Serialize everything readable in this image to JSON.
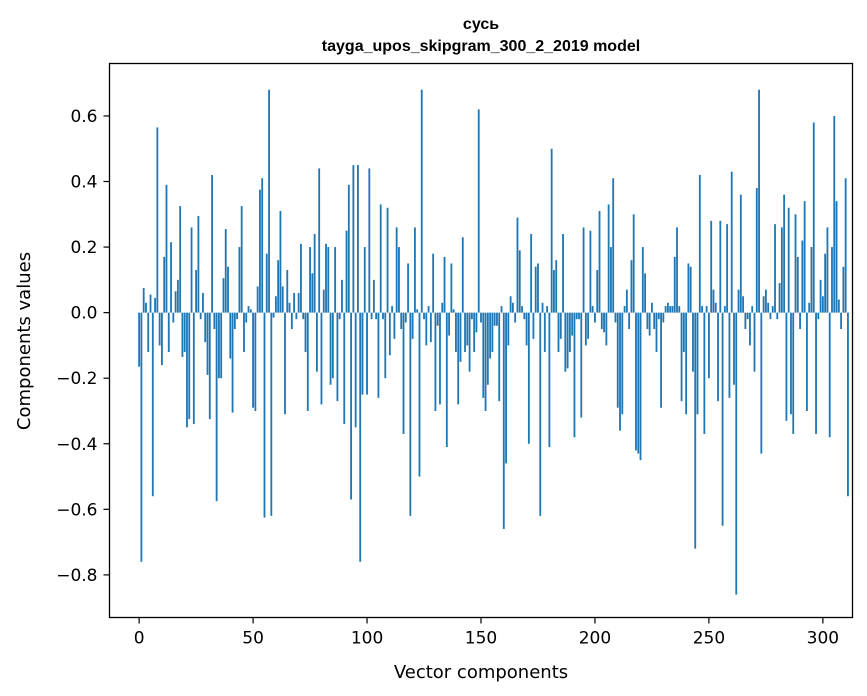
{
  "chart_data": {
    "type": "bar",
    "title_line1": "сусь",
    "title_line2": "tayga_upos_skipgram_300_2_2019 model",
    "xlabel": "Vector components",
    "ylabel": "Components values",
    "xlim": [
      -13,
      313
    ],
    "ylim": [
      -0.93,
      0.76
    ],
    "xticks": [
      0,
      50,
      100,
      150,
      200,
      250,
      300
    ],
    "xtick_labels": [
      "0",
      "50",
      "100",
      "150",
      "200",
      "250",
      "300"
    ],
    "yticks": [
      -0.8,
      -0.6,
      -0.4,
      -0.2,
      0.0,
      0.2,
      0.4,
      0.6
    ],
    "ytick_labels": [
      "−0.8",
      "−0.6",
      "−0.4",
      "−0.2",
      "0.0",
      "0.2",
      "0.4",
      "0.6"
    ],
    "bar_color": "#1f77b4",
    "values": [
      -0.165,
      -0.76,
      0.075,
      0.03,
      -0.12,
      0.055,
      -0.56,
      0.045,
      0.565,
      -0.1,
      -0.16,
      0.17,
      0.39,
      -0.12,
      0.215,
      -0.03,
      0.065,
      0.1,
      0.325,
      -0.135,
      -0.12,
      -0.35,
      -0.325,
      0.26,
      -0.34,
      0.13,
      0.295,
      -0.02,
      0.06,
      -0.09,
      -0.19,
      -0.325,
      0.42,
      -0.05,
      -0.575,
      -0.2,
      -0.2,
      0.105,
      0.255,
      0.14,
      -0.14,
      -0.305,
      -0.05,
      -0.02,
      0.2,
      0.325,
      -0.12,
      -0.03,
      0.02,
      0.01,
      -0.29,
      -0.3,
      0.08,
      0.375,
      0.41,
      -0.625,
      0.18,
      0.68,
      -0.62,
      -0.015,
      0.05,
      0.16,
      0.31,
      0.08,
      -0.31,
      0.13,
      0.03,
      -0.05,
      0.06,
      -0.02,
      0.06,
      0.21,
      -0.02,
      -0.12,
      -0.3,
      0.2,
      0.12,
      0.24,
      -0.18,
      0.44,
      -0.28,
      0.07,
      0.21,
      0.2,
      -0.22,
      -0.2,
      0.2,
      -0.27,
      -0.02,
      0.1,
      -0.34,
      0.25,
      0.39,
      -0.57,
      0.45,
      -0.35,
      0.45,
      -0.76,
      -0.25,
      0.2,
      -0.25,
      0.44,
      -0.02,
      0.1,
      -0.02,
      -0.26,
      0.33,
      -0.02,
      -0.2,
      0.32,
      -0.13,
      0.02,
      -0.08,
      0.26,
      0.2,
      -0.05,
      -0.37,
      -0.03,
      0.15,
      -0.62,
      -0.08,
      0.26,
      0.01,
      -0.5,
      0.68,
      -0.02,
      -0.1,
      0.02,
      -0.09,
      0.18,
      -0.3,
      -0.04,
      -0.28,
      0.03,
      0.17,
      -0.41,
      -0.07,
      0.15,
      0.01,
      -0.12,
      -0.28,
      -0.15,
      0.23,
      -0.12,
      -0.1,
      -0.18,
      -0.02,
      -0.12,
      -0.06,
      0.62,
      -0.03,
      -0.26,
      -0.3,
      -0.22,
      -0.14,
      -0.12,
      -0.04,
      -0.04,
      -0.27,
      0.02,
      -0.66,
      -0.46,
      -0.1,
      0.05,
      0.03,
      -0.03,
      0.29,
      0.19,
      0.02,
      -0.02,
      -0.1,
      -0.4,
      0.24,
      -0.08,
      0.14,
      0.15,
      -0.62,
      0.03,
      -0.12,
      0.02,
      -0.41,
      0.5,
      0.13,
      0.16,
      -0.12,
      -0.08,
      0.24,
      -0.18,
      -0.17,
      -0.12,
      -0.07,
      -0.38,
      -0.02,
      -0.02,
      -0.32,
      0.26,
      -0.1,
      -0.08,
      0.25,
      0.02,
      -0.03,
      0.13,
      0.31,
      -0.05,
      -0.06,
      -0.1,
      0.33,
      0.2,
      0.41,
      -0.03,
      -0.29,
      -0.36,
      -0.31,
      0.02,
      0.07,
      -0.05,
      0.16,
      0.3,
      -0.42,
      -0.43,
      -0.45,
      0.2,
      0.12,
      -0.05,
      -0.07,
      0.03,
      -0.05,
      -0.12,
      -0.02,
      -0.29,
      -0.03,
      0.02,
      0.03,
      0.02,
      0.02,
      0.17,
      0.26,
      0.02,
      -0.27,
      -0.12,
      -0.31,
      0.15,
      0.14,
      -0.18,
      -0.72,
      -0.31,
      0.42,
      0.02,
      -0.37,
      0.02,
      -0.2,
      0.28,
      0.07,
      0.03,
      -0.27,
      0.28,
      -0.65,
      0.02,
      0.27,
      -0.26,
      0.43,
      -0.22,
      -0.86,
      0.07,
      0.36,
      0.05,
      -0.05,
      -0.02,
      -0.1,
      0.02,
      -0.18,
      0.38,
      0.68,
      -0.43,
      0.05,
      0.07,
      0.03,
      -0.02,
      0.02,
      0.27,
      -0.02,
      0.09,
      0.26,
      0.36,
      -0.33,
      0.32,
      -0.31,
      -0.37,
      0.3,
      0.17,
      -0.05,
      0.22,
      0.34,
      -0.3,
      0.03,
      0.2,
      0.58,
      -0.37,
      -0.02,
      0.1,
      0.05,
      0.18,
      0.26,
      -0.38,
      0.2,
      0.6,
      0.34,
      0.04,
      -0.05,
      0.14,
      0.41,
      -0.56
    ]
  }
}
